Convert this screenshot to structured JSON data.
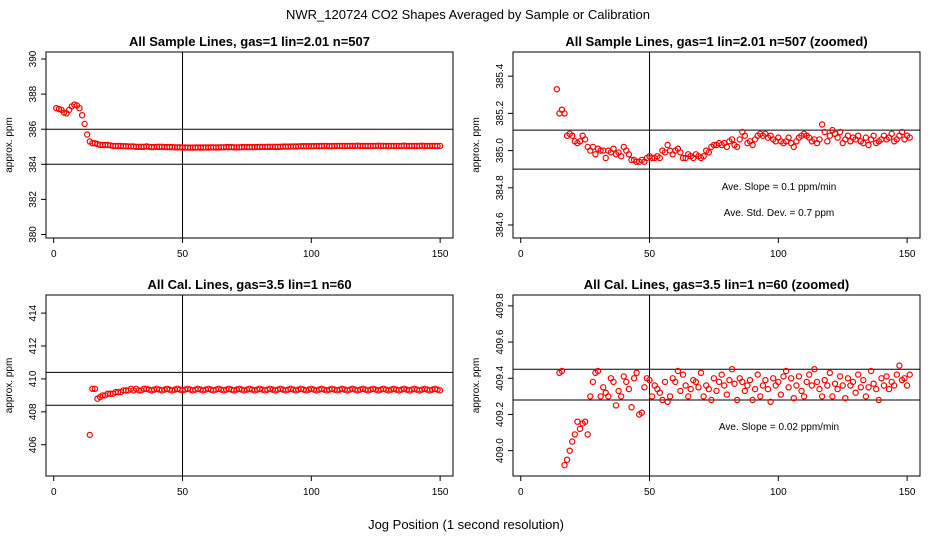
{
  "figure": {
    "title": "NWR_120724  CO2 Shapes Averaged by Sample or Calibration",
    "xlabel": "Jog Position (1 second resolution)"
  },
  "chart_data": [
    {
      "type": "scatter",
      "title": "All Sample Lines, gas=1 lin=2.01 n=507",
      "ylabel": "approx. ppm",
      "xlim": [
        -3,
        155
      ],
      "ylim": [
        379.8,
        390.4
      ],
      "xticks": [
        0,
        50,
        100,
        150
      ],
      "xtick_labels": [
        "0",
        "50",
        "100",
        "150"
      ],
      "yticks": [
        380,
        382,
        384,
        386,
        388,
        390
      ],
      "ytick_labels": [
        "380",
        "382",
        "384",
        "386",
        "388",
        "390"
      ],
      "color": "#ff0000",
      "hlines": [
        384.0,
        386.0
      ],
      "vline": 50,
      "annotations": [],
      "points": {
        "x_start": 1,
        "y": [
          387.2,
          387.15,
          387.1,
          386.95,
          386.9,
          387.1,
          387.3,
          387.4,
          387.35,
          387.2,
          386.8,
          386.3,
          385.7,
          385.3,
          385.2,
          385.2,
          385.15,
          385.1,
          385.1,
          385.1,
          385.1,
          385.08,
          385.05,
          385.05,
          385.05,
          385.05,
          385.03,
          385.03,
          385.02,
          385.02,
          385.02,
          385.0,
          385.0,
          385.0,
          385.0,
          385.02,
          385.0,
          384.98,
          384.98,
          385.0,
          385.0,
          385.0,
          384.98,
          384.98,
          384.98,
          384.98,
          384.97,
          384.97,
          384.97,
          384.96,
          384.96,
          384.95,
          384.95,
          384.95,
          384.96,
          384.96,
          384.96,
          384.96,
          384.96,
          384.96,
          384.97,
          384.97,
          384.96,
          384.97,
          384.97,
          384.97,
          384.98,
          384.98,
          384.98,
          384.97,
          384.97,
          384.97,
          384.98,
          384.98,
          384.98,
          384.98,
          384.98,
          384.98,
          384.98,
          384.99,
          384.99,
          384.99,
          385.0,
          385.0,
          385.0,
          385.0,
          385.0,
          385.0,
          385.01,
          385.01,
          385.01,
          385.01,
          385.02,
          385.02,
          385.02,
          385.03,
          385.03,
          385.03,
          385.03,
          385.03,
          385.04,
          385.04,
          385.04,
          385.05,
          385.05,
          385.05,
          385.04,
          385.04,
          385.05,
          385.05,
          385.05,
          385.05,
          385.05,
          385.05,
          385.05,
          385.05,
          385.05,
          385.06,
          385.05,
          385.05,
          385.05,
          385.05,
          385.05,
          385.05,
          385.05,
          385.06,
          385.05,
          385.05,
          385.05,
          385.05,
          385.05,
          385.05,
          385.05,
          385.05,
          385.05,
          385.06,
          385.05,
          385.05,
          385.05,
          385.05,
          385.05,
          385.05,
          385.06,
          385.05,
          385.05,
          385.05,
          385.05,
          385.05,
          385.05,
          385.05
        ]
      }
    },
    {
      "type": "scatter",
      "title": "All Sample Lines, gas=1 lin=2.01 n=507 (zoomed)",
      "ylabel": "approx. ppm",
      "xlim": [
        -3,
        155
      ],
      "ylim": [
        384.53,
        385.53
      ],
      "xticks": [
        0,
        50,
        100,
        150
      ],
      "xtick_labels": [
        "0",
        "50",
        "100",
        "150"
      ],
      "yticks": [
        384.6,
        384.8,
        385.0,
        385.2,
        385.4
      ],
      "ytick_labels": [
        "384.6",
        "384.8",
        "385.0",
        "385.2",
        "385.4"
      ],
      "color": "#ff0000",
      "hlines": [
        384.9,
        385.11
      ],
      "vline": 50,
      "annotations": [
        "Ave. Slope =  0.1  ppm/min",
        "Ave. Std. Dev. =  0.7  ppm"
      ],
      "points": {
        "x_start": 14,
        "y": [
          385.33,
          385.2,
          385.22,
          385.2,
          385.08,
          385.09,
          385.08,
          385.05,
          385.04,
          385.05,
          385.08,
          385.06,
          385.02,
          385.0,
          385.02,
          384.98,
          385.01,
          385.0,
          385.0,
          384.96,
          385.0,
          384.99,
          385.01,
          384.98,
          384.99,
          384.97,
          385.02,
          385.0,
          384.98,
          384.95,
          384.95,
          384.94,
          384.94,
          384.95,
          384.94,
          384.96,
          384.97,
          384.96,
          384.96,
          384.97,
          384.96,
          385.0,
          384.99,
          385.03,
          385.0,
          384.98,
          385.0,
          385.01,
          384.99,
          384.96,
          384.96,
          384.98,
          384.97,
          384.96,
          384.98,
          384.97,
          384.96,
          384.97,
          385.0,
          384.99,
          385.02,
          385.03,
          385.03,
          385.04,
          385.03,
          385.04,
          385.02,
          385.05,
          385.06,
          385.03,
          385.02,
          385.06,
          385.1,
          385.08,
          385.04,
          385.05,
          385.03,
          385.06,
          385.08,
          385.09,
          385.08,
          385.09,
          385.07,
          385.08,
          385.06,
          385.05,
          385.07,
          385.05,
          385.04,
          385.05,
          385.07,
          385.04,
          385.02,
          385.05,
          385.07,
          385.08,
          385.09,
          385.08,
          385.07,
          385.05,
          385.06,
          385.04,
          385.06,
          385.14,
          385.1,
          385.05,
          385.08,
          385.11,
          385.09,
          385.07,
          385.1,
          385.04,
          385.06,
          385.08,
          385.05,
          385.07,
          385.06,
          385.08,
          385.05,
          385.04,
          385.07,
          385.03,
          385.06,
          385.08,
          385.04,
          385.05,
          385.06,
          385.08,
          385.06,
          385.07,
          385.09,
          385.05,
          385.06,
          385.08,
          385.1,
          385.06,
          385.08,
          385.07
        ]
      }
    },
    {
      "type": "scatter",
      "title": "All Cal. Lines, gas=3.5 lin=1 n=60",
      "ylabel": "approx. ppm",
      "xlim": [
        -3,
        155
      ],
      "ylim": [
        404.1,
        415.1
      ],
      "xticks": [
        0,
        50,
        100,
        150
      ],
      "xtick_labels": [
        "0",
        "50",
        "100",
        "150"
      ],
      "yticks": [
        404,
        406,
        408,
        410,
        412,
        414
      ],
      "ytick_labels": [
        "404",
        "406",
        "408",
        "410",
        "412",
        "414"
      ],
      "color": "#ff0000",
      "hlines": [
        408.4,
        410.4
      ],
      "vline": 50,
      "annotations": [],
      "points": {
        "x_start": 14,
        "y": [
          406.6,
          409.4,
          409.4,
          408.8,
          408.9,
          409.0,
          409.0,
          409.1,
          409.1,
          409.1,
          409.2,
          409.2,
          409.2,
          409.3,
          409.3,
          409.3,
          409.4,
          409.3,
          409.4,
          409.3,
          409.3,
          409.4,
          409.4,
          409.35,
          409.3,
          409.35,
          409.4,
          409.35,
          409.3,
          409.35,
          409.4,
          409.35,
          409.3,
          409.35,
          409.4,
          409.35,
          409.3,
          409.35,
          409.4,
          409.35,
          409.3,
          409.35,
          409.4,
          409.35,
          409.3,
          409.35,
          409.4,
          409.35,
          409.3,
          409.35,
          409.4,
          409.35,
          409.3,
          409.35,
          409.4,
          409.35,
          409.3,
          409.35,
          409.4,
          409.35,
          409.3,
          409.35,
          409.4,
          409.35,
          409.3,
          409.35,
          409.4,
          409.35,
          409.3,
          409.35,
          409.4,
          409.35,
          409.3,
          409.35,
          409.4,
          409.35,
          409.3,
          409.35,
          409.4,
          409.35,
          409.3,
          409.35,
          409.4,
          409.35,
          409.3,
          409.35,
          409.4,
          409.35,
          409.3,
          409.35,
          409.4,
          409.35,
          409.3,
          409.35,
          409.4,
          409.35,
          409.3,
          409.35,
          409.4,
          409.35,
          409.3,
          409.35,
          409.4,
          409.35,
          409.3,
          409.35,
          409.4,
          409.35,
          409.3,
          409.35,
          409.4,
          409.35,
          409.3,
          409.35,
          409.4,
          409.35,
          409.3,
          409.35,
          409.4,
          409.35,
          409.3,
          409.35,
          409.4,
          409.35,
          409.3,
          409.35,
          409.4,
          409.35,
          409.3,
          409.35,
          409.4,
          409.35,
          409.3,
          409.35,
          409.4,
          409.35,
          409.3
        ]
      }
    },
    {
      "type": "scatter",
      "title": "All Cal. Lines, gas=3.5 lin=1 n=60 (zoomed)",
      "ylabel": "approx. ppm",
      "xlim": [
        -3,
        155
      ],
      "ylim": [
        408.86,
        409.86
      ],
      "xticks": [
        0,
        50,
        100,
        150
      ],
      "xtick_labels": [
        "0",
        "50",
        "100",
        "150"
      ],
      "yticks": [
        409.0,
        409.2,
        409.4,
        409.6,
        409.8
      ],
      "ytick_labels": [
        "409.0",
        "409.2",
        "409.4",
        "409.6",
        "409.8"
      ],
      "color": "#ff0000",
      "hlines": [
        409.28,
        409.45
      ],
      "vline": 50,
      "annotations": [
        "Ave. Slope =  0.02  ppm/min"
      ],
      "points": {
        "x_start": 15,
        "y": [
          409.43,
          409.44,
          408.92,
          408.95,
          409.0,
          409.05,
          409.09,
          409.16,
          409.12,
          409.15,
          409.16,
          409.09,
          409.3,
          409.38,
          409.43,
          409.44,
          409.3,
          409.35,
          409.32,
          409.3,
          409.4,
          409.38,
          409.25,
          409.33,
          409.3,
          409.41,
          409.38,
          409.34,
          409.24,
          409.4,
          409.43,
          409.2,
          409.21,
          409.35,
          409.4,
          409.39,
          409.3,
          409.36,
          409.34,
          409.32,
          409.28,
          409.38,
          409.27,
          409.3,
          409.4,
          409.38,
          409.44,
          409.33,
          409.42,
          409.36,
          409.3,
          409.34,
          409.39,
          409.38,
          409.35,
          409.43,
          409.3,
          409.36,
          409.34,
          409.28,
          409.4,
          409.33,
          409.38,
          409.42,
          409.36,
          409.31,
          409.39,
          409.45,
          409.37,
          409.28,
          409.4,
          409.38,
          409.33,
          409.36,
          409.39,
          409.28,
          409.34,
          409.42,
          409.3,
          409.36,
          409.39,
          409.34,
          409.27,
          409.4,
          409.36,
          409.38,
          409.31,
          409.41,
          409.44,
          409.35,
          409.4,
          409.29,
          409.36,
          409.41,
          409.33,
          409.3,
          409.38,
          409.42,
          409.36,
          409.45,
          409.38,
          409.34,
          409.3,
          409.39,
          409.36,
          409.43,
          409.3,
          409.37,
          409.34,
          409.41,
          409.36,
          409.29,
          409.4,
          409.36,
          409.38,
          409.32,
          409.42,
          409.35,
          409.39,
          409.3,
          409.35,
          409.44,
          409.37,
          409.34,
          409.28,
          409.4,
          409.36,
          409.41,
          409.34,
          409.38,
          409.36,
          409.42,
          409.47,
          409.39,
          409.4,
          409.36,
          409.42
        ]
      }
    }
  ]
}
